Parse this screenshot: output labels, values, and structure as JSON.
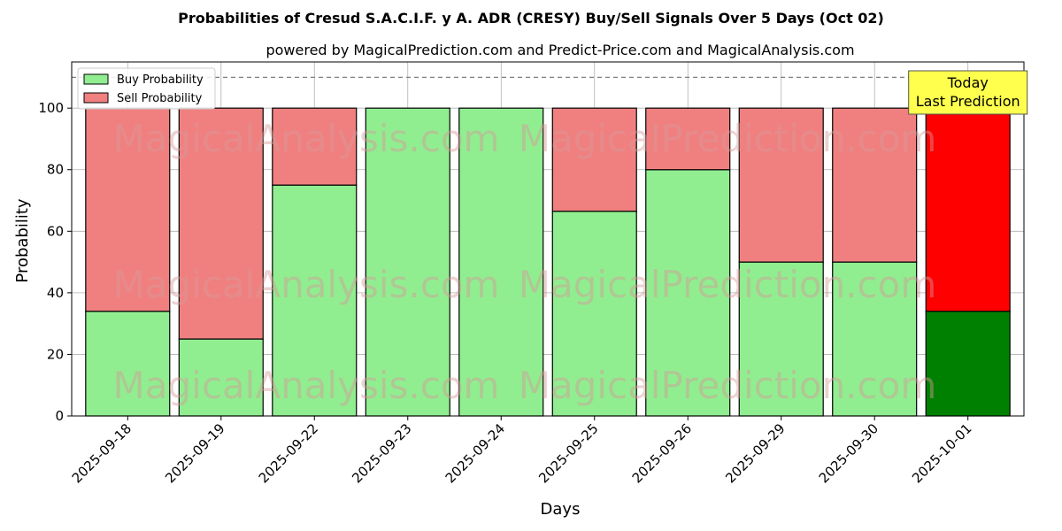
{
  "chart_data": {
    "type": "bar",
    "title": "Probabilities of Cresud S.A.C.I.F. y A. ADR (CRESY) Buy/Sell Signals Over 5 Days (Oct 02)",
    "subtitle": "powered by MagicalPrediction.com and Predict-Price.com and MagicalAnalysis.com",
    "xlabel": "Days",
    "ylabel": "Probability",
    "ylim": [
      0,
      115
    ],
    "yticks": [
      0,
      20,
      40,
      60,
      80,
      100
    ],
    "reference_line": 110,
    "grid": true,
    "stacked": true,
    "legend_position": "top-left",
    "categories": [
      "2025-09-18",
      "2025-09-19",
      "2025-09-22",
      "2025-09-23",
      "2025-09-24",
      "2025-09-25",
      "2025-09-26",
      "2025-09-29",
      "2025-09-30",
      "2025-10-01"
    ],
    "series": [
      {
        "name": "Buy Probability",
        "values": [
          34,
          25,
          75,
          100,
          100,
          66.5,
          80,
          50,
          50,
          34
        ],
        "color": "#90ee90",
        "highlight_color": "#008000"
      },
      {
        "name": "Sell Probability",
        "values": [
          66,
          75,
          25,
          0,
          0,
          33.5,
          20,
          50,
          50,
          66
        ],
        "color": "#f08080",
        "highlight_color": "#ff0000"
      }
    ],
    "annotation": {
      "lines": [
        "Today",
        "Last Prediction"
      ],
      "color": "#ffff4d"
    },
    "watermarks": [
      "MagicalAnalysis.com",
      "MagicalPrediction.com"
    ]
  }
}
